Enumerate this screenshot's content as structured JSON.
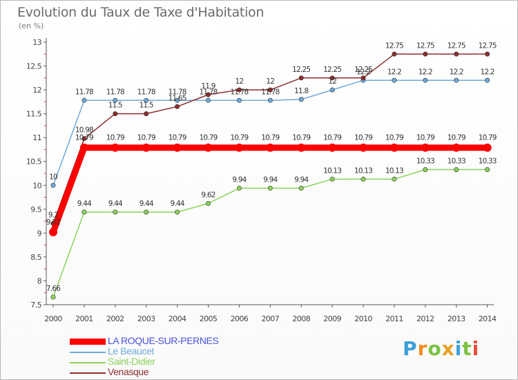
{
  "header": {
    "title": "Evolution du Taux de Taxe d'Habitation",
    "subtitle": "(en %)"
  },
  "brand": {
    "logo_letters": [
      "P",
      "r",
      "o",
      "x",
      "i",
      "t",
      "i"
    ],
    "logo_colors": [
      "#3aa0d8",
      "#f08c1e",
      "#7cc242",
      "#e8a020",
      "#3aa0d8",
      "#7cc242",
      "#e84c3c"
    ]
  },
  "chart_data": {
    "type": "line",
    "title": "Evolution du Taux de Taxe d'Habitation",
    "ylabel": "(en %)",
    "xlabel": "",
    "x": [
      "2000",
      "2001",
      "2002",
      "2003",
      "2004",
      "2005",
      "2006",
      "2007",
      "2008",
      "2009",
      "2010",
      "2011",
      "2012",
      "2013",
      "2014"
    ],
    "ylim": [
      7.5,
      13
    ],
    "yticks": [
      "7.5",
      "8",
      "8.5",
      "9",
      "9.5",
      "10",
      "10.5",
      "11",
      "11.5",
      "12",
      "12.5",
      "13"
    ],
    "grid": false,
    "legend_position": "bottom-left",
    "series": [
      {
        "name": "LA ROQUE-SUR-PERNES",
        "color": "#ff0000",
        "emphasis": true,
        "values": [
          9.02,
          10.79,
          10.79,
          10.79,
          10.79,
          10.79,
          10.79,
          10.79,
          10.79,
          10.79,
          10.79,
          10.79,
          10.79,
          10.79,
          10.79
        ],
        "labels": [
          "9.02",
          "10.79",
          "10.79",
          "10.79",
          "10.79",
          "10.79",
          "10.79",
          "10.79",
          "10.79",
          "10.79",
          "10.79",
          "10.79",
          "10.79",
          "10.79",
          "10.79"
        ]
      },
      {
        "name": "Le Beaucet",
        "color": "#6ea8d8",
        "emphasis": false,
        "values": [
          10.0,
          11.78,
          11.78,
          11.78,
          11.78,
          11.78,
          11.78,
          11.78,
          11.8,
          12.0,
          12.2,
          12.2,
          12.2,
          12.2,
          12.2
        ],
        "labels": [
          "10",
          "11.78",
          "11.78",
          "11.78",
          "11.78",
          "11.78",
          "11.78",
          "11.78",
          "11.8",
          "12",
          "12.2",
          "12.2",
          "12.2",
          "12.2",
          "12.2"
        ]
      },
      {
        "name": "Saint-Didier",
        "color": "#8ad25a",
        "emphasis": false,
        "values": [
          7.66,
          9.44,
          9.44,
          9.44,
          9.44,
          9.62,
          9.94,
          9.94,
          9.94,
          10.13,
          10.13,
          10.13,
          10.33,
          10.33,
          10.33
        ],
        "labels": [
          "7.66",
          "9.44",
          "9.44",
          "9.44",
          "9.44",
          "9.62",
          "9.94",
          "9.94",
          "9.94",
          "10.13",
          "10.13",
          "10.13",
          "10.33",
          "10.33",
          "10.33"
        ]
      },
      {
        "name": "Venasque",
        "color": "#8b2e2e",
        "emphasis": false,
        "values": [
          9.2,
          10.98,
          11.5,
          11.5,
          11.65,
          11.9,
          12.0,
          12.0,
          12.25,
          12.25,
          12.25,
          12.75,
          12.75,
          12.75,
          12.75
        ],
        "labels": [
          "9.2",
          "10.98",
          "11.5",
          "11.5",
          "11.65",
          "11.9",
          "12",
          "12",
          "12.25",
          "12.25",
          "12.25",
          "12.75",
          "12.75",
          "12.75",
          "12.75"
        ]
      }
    ]
  }
}
